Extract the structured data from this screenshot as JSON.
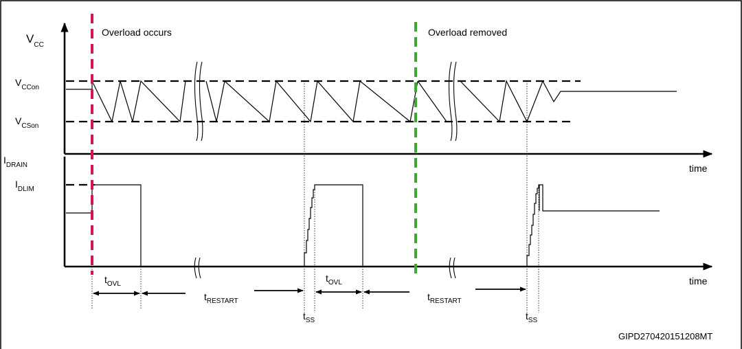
{
  "labels": {
    "vcc": "V",
    "vcc_sub": "CC",
    "vccon": "V",
    "vccon_sub": "CCon",
    "vcson": "V",
    "vcson_sub": "CSon",
    "idrain": "I",
    "idrain_sub": "DRAIN",
    "idlim": "I",
    "idlim_sub": "DLIM",
    "time_top": "time",
    "time_bottom": "time",
    "overload_occurs": "Overload occurs",
    "overload_removed": "Overload removed",
    "tovl_1": "t",
    "tovl_1_sub": "OVL",
    "tovl_2": "t",
    "tovl_2_sub": "OVL",
    "trestart_1": "t",
    "trestart_1_sub": "RESTART",
    "trestart_2": "t",
    "trestart_2_sub": "RESTART",
    "tss_1": "t",
    "tss_1_sub": "SS",
    "tss_2": "t",
    "tss_2_sub": "SS",
    "code": "GIPD270420151208MT"
  },
  "colors": {
    "overload_occurs_marker": "#d4145a",
    "overload_removed_marker": "#3aaa35",
    "frame": "#000000"
  }
}
